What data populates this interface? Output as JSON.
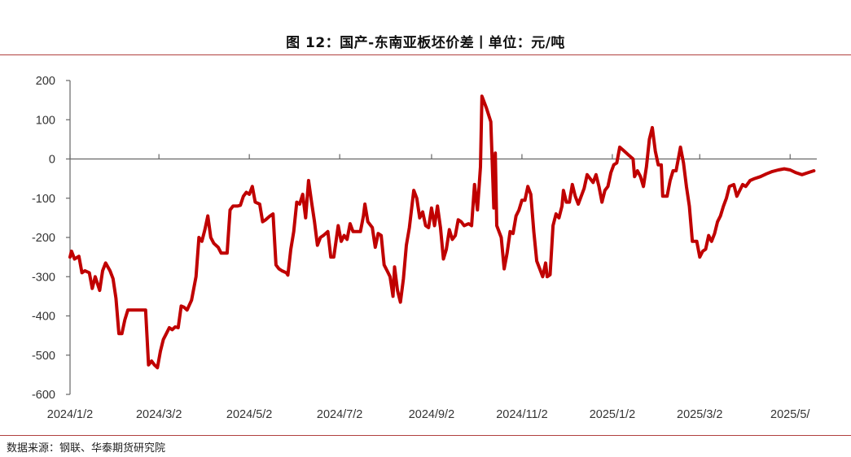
{
  "title": "图 12：国产-东南亚板坯价差丨单位：元/吨",
  "source": "数据来源：钢联、华泰期货研究院",
  "chart_data": {
    "type": "line",
    "title": "图 12：国产-东南亚板坯价差丨单位：元/吨",
    "xlabel": "",
    "ylabel": "",
    "ylim": [
      -600,
      200
    ],
    "yticks": [
      200,
      100,
      0,
      -100,
      -200,
      -300,
      -400,
      -500,
      -600
    ],
    "ytick_labels": [
      "200",
      "100",
      "0",
      "-100",
      "-200",
      "-300",
      "-400",
      "-500",
      "-600"
    ],
    "xlim": [
      "2024-01-02",
      "2025-05-20"
    ],
    "xticks": [
      "2024-01-02",
      "2024-03-02",
      "2024-05-02",
      "2024-07-02",
      "2024-09-02",
      "2024-11-02",
      "2025-01-02",
      "2025-03-02",
      "2025-05-02"
    ],
    "xtick_labels": [
      "2024/1/2",
      "2024/3/2",
      "2024/5/2",
      "2024/7/2",
      "2024/9/2",
      "2024/11/2",
      "2025/1/2",
      "2025/3/2",
      "2025/5/"
    ],
    "grid": false,
    "legend": "none",
    "series_color": "#c00000",
    "series": [
      {
        "points": [
          [
            "2024-01-02",
            -250
          ],
          [
            "2024-01-03",
            -235
          ],
          [
            "2024-01-05",
            -255
          ],
          [
            "2024-01-08",
            -248
          ],
          [
            "2024-01-10",
            -290
          ],
          [
            "2024-01-12",
            -285
          ],
          [
            "2024-01-15",
            -290
          ],
          [
            "2024-01-17",
            -330
          ],
          [
            "2024-01-19",
            -300
          ],
          [
            "2024-01-22",
            -335
          ],
          [
            "2024-01-24",
            -285
          ],
          [
            "2024-01-26",
            -265
          ],
          [
            "2024-01-29",
            -285
          ],
          [
            "2024-01-31",
            -305
          ],
          [
            "2024-02-02",
            -355
          ],
          [
            "2024-02-04",
            -445
          ],
          [
            "2024-02-06",
            -445
          ],
          [
            "2024-02-08",
            -410
          ],
          [
            "2024-02-10",
            -385
          ],
          [
            "2024-02-13",
            -385
          ],
          [
            "2024-02-16",
            -385
          ],
          [
            "2024-02-19",
            -385
          ],
          [
            "2024-02-22",
            -385
          ],
          [
            "2024-02-24",
            -525
          ],
          [
            "2024-02-26",
            -515
          ],
          [
            "2024-02-28",
            -525
          ],
          [
            "2024-03-01",
            -532
          ],
          [
            "2024-03-03",
            -490
          ],
          [
            "2024-03-05",
            -460
          ],
          [
            "2024-03-07",
            -445
          ],
          [
            "2024-03-09",
            -430
          ],
          [
            "2024-03-11",
            -435
          ],
          [
            "2024-03-13",
            -428
          ],
          [
            "2024-03-15",
            -430
          ],
          [
            "2024-03-17",
            -375
          ],
          [
            "2024-03-19",
            -378
          ],
          [
            "2024-03-21",
            -385
          ],
          [
            "2024-03-24",
            -360
          ],
          [
            "2024-03-27",
            -300
          ],
          [
            "2024-03-29",
            -200
          ],
          [
            "2024-03-31",
            -210
          ],
          [
            "2024-04-02",
            -180
          ],
          [
            "2024-04-04",
            -145
          ],
          [
            "2024-04-06",
            -200
          ],
          [
            "2024-04-08",
            -215
          ],
          [
            "2024-04-11",
            -225
          ],
          [
            "2024-04-13",
            -240
          ],
          [
            "2024-04-15",
            -240
          ],
          [
            "2024-04-17",
            -240
          ],
          [
            "2024-04-19",
            -130
          ],
          [
            "2024-04-21",
            -120
          ],
          [
            "2024-04-24",
            -120
          ],
          [
            "2024-04-26",
            -118
          ],
          [
            "2024-04-28",
            -95
          ],
          [
            "2024-04-30",
            -85
          ],
          [
            "2024-05-02",
            -90
          ],
          [
            "2024-05-04",
            -70
          ],
          [
            "2024-05-06",
            -110
          ],
          [
            "2024-05-09",
            -115
          ],
          [
            "2024-05-11",
            -160
          ],
          [
            "2024-05-13",
            -155
          ],
          [
            "2024-05-16",
            -145
          ],
          [
            "2024-05-18",
            -140
          ],
          [
            "2024-05-20",
            -270
          ],
          [
            "2024-05-22",
            -280
          ],
          [
            "2024-05-24",
            -285
          ],
          [
            "2024-05-27",
            -290
          ],
          [
            "2024-05-28",
            -296
          ],
          [
            "2024-05-30",
            -230
          ],
          [
            "2024-06-01",
            -185
          ],
          [
            "2024-06-03",
            -110
          ],
          [
            "2024-06-05",
            -115
          ],
          [
            "2024-06-07",
            -90
          ],
          [
            "2024-06-09",
            -150
          ],
          [
            "2024-06-11",
            -55
          ],
          [
            "2024-06-13",
            -110
          ],
          [
            "2024-06-15",
            -160
          ],
          [
            "2024-06-17",
            -220
          ],
          [
            "2024-06-19",
            -200
          ],
          [
            "2024-06-21",
            -195
          ],
          [
            "2024-06-24",
            -185
          ],
          [
            "2024-06-26",
            -250
          ],
          [
            "2024-06-28",
            -250
          ],
          [
            "2024-07-01",
            -170
          ],
          [
            "2024-07-03",
            -210
          ],
          [
            "2024-07-05",
            -195
          ],
          [
            "2024-07-07",
            -205
          ],
          [
            "2024-07-09",
            -165
          ],
          [
            "2024-07-11",
            -185
          ],
          [
            "2024-07-13",
            -185
          ],
          [
            "2024-07-16",
            -185
          ],
          [
            "2024-07-18",
            -145
          ],
          [
            "2024-07-19",
            -115
          ],
          [
            "2024-07-21",
            -160
          ],
          [
            "2024-07-24",
            -175
          ],
          [
            "2024-07-26",
            -225
          ],
          [
            "2024-07-28",
            -190
          ],
          [
            "2024-07-30",
            -195
          ],
          [
            "2024-08-01",
            -270
          ],
          [
            "2024-08-03",
            -285
          ],
          [
            "2024-08-05",
            -300
          ],
          [
            "2024-08-07",
            -350
          ],
          [
            "2024-08-08",
            -275
          ],
          [
            "2024-08-10",
            -335
          ],
          [
            "2024-08-12",
            -365
          ],
          [
            "2024-08-14",
            -305
          ],
          [
            "2024-08-16",
            -220
          ],
          [
            "2024-08-18",
            -175
          ],
          [
            "2024-08-21",
            -80
          ],
          [
            "2024-08-23",
            -100
          ],
          [
            "2024-08-25",
            -150
          ],
          [
            "2024-08-27",
            -135
          ],
          [
            "2024-08-29",
            -170
          ],
          [
            "2024-08-31",
            -175
          ],
          [
            "2024-09-02",
            -125
          ],
          [
            "2024-09-04",
            -170
          ],
          [
            "2024-09-06",
            -120
          ],
          [
            "2024-09-08",
            -175
          ],
          [
            "2024-09-10",
            -255
          ],
          [
            "2024-09-12",
            -230
          ],
          [
            "2024-09-14",
            -180
          ],
          [
            "2024-09-16",
            -205
          ],
          [
            "2024-09-18",
            -195
          ],
          [
            "2024-09-20",
            -155
          ],
          [
            "2024-09-22",
            -160
          ],
          [
            "2024-09-24",
            -170
          ],
          [
            "2024-09-27",
            -165
          ],
          [
            "2024-09-29",
            -170
          ],
          [
            "2024-10-01",
            -65
          ],
          [
            "2024-10-03",
            -130
          ],
          [
            "2024-10-05",
            -20
          ],
          [
            "2024-10-06",
            160
          ],
          [
            "2024-10-09",
            130
          ],
          [
            "2024-10-12",
            95
          ],
          [
            "2024-10-14",
            -125
          ],
          [
            "2024-10-15",
            15
          ],
          [
            "2024-10-16",
            -170
          ],
          [
            "2024-10-19",
            -200
          ],
          [
            "2024-10-21",
            -280
          ],
          [
            "2024-10-23",
            -240
          ],
          [
            "2024-10-25",
            -185
          ],
          [
            "2024-10-27",
            -190
          ],
          [
            "2024-10-29",
            -145
          ],
          [
            "2024-10-31",
            -130
          ],
          [
            "2024-11-02",
            -105
          ],
          [
            "2024-11-04",
            -105
          ],
          [
            "2024-11-06",
            -70
          ],
          [
            "2024-11-08",
            -90
          ],
          [
            "2024-11-10",
            -185
          ],
          [
            "2024-11-12",
            -260
          ],
          [
            "2024-11-14",
            -280
          ],
          [
            "2024-11-16",
            -300
          ],
          [
            "2024-11-18",
            -265
          ],
          [
            "2024-11-19",
            -300
          ],
          [
            "2024-11-21",
            -295
          ],
          [
            "2024-11-23",
            -170
          ],
          [
            "2024-11-25",
            -140
          ],
          [
            "2024-11-27",
            -150
          ],
          [
            "2024-11-29",
            -120
          ],
          [
            "2024-11-30",
            -80
          ],
          [
            "2024-12-02",
            -110
          ],
          [
            "2024-12-04",
            -110
          ],
          [
            "2024-12-06",
            -65
          ],
          [
            "2024-12-08",
            -95
          ],
          [
            "2024-12-10",
            -115
          ],
          [
            "2024-12-12",
            -95
          ],
          [
            "2024-12-14",
            -75
          ],
          [
            "2024-12-16",
            -40
          ],
          [
            "2024-12-18",
            -50
          ],
          [
            "2024-12-20",
            -60
          ],
          [
            "2024-12-22",
            -40
          ],
          [
            "2024-12-24",
            -70
          ],
          [
            "2024-12-26",
            -110
          ],
          [
            "2024-12-28",
            -80
          ],
          [
            "2024-12-30",
            -70
          ],
          [
            "2025-01-01",
            -35
          ],
          [
            "2025-01-03",
            -15
          ],
          [
            "2025-01-05",
            -10
          ],
          [
            "2025-01-07",
            30
          ],
          [
            "2025-01-10",
            20
          ],
          [
            "2025-01-13",
            10
          ],
          [
            "2025-01-16",
            0
          ],
          [
            "2025-01-17",
            -45
          ],
          [
            "2025-01-19",
            -30
          ],
          [
            "2025-01-21",
            -45
          ],
          [
            "2025-01-23",
            -70
          ],
          [
            "2025-01-25",
            -20
          ],
          [
            "2025-01-27",
            50
          ],
          [
            "2025-01-29",
            80
          ],
          [
            "2025-01-31",
            20
          ],
          [
            "2025-02-02",
            -15
          ],
          [
            "2025-02-04",
            -15
          ],
          [
            "2025-02-05",
            -95
          ],
          [
            "2025-02-08",
            -95
          ],
          [
            "2025-02-10",
            -55
          ],
          [
            "2025-02-12",
            -30
          ],
          [
            "2025-02-14",
            -30
          ],
          [
            "2025-02-16",
            10
          ],
          [
            "2025-02-17",
            30
          ],
          [
            "2025-02-19",
            -10
          ],
          [
            "2025-02-21",
            -70
          ],
          [
            "2025-02-23",
            -120
          ],
          [
            "2025-02-25",
            -210
          ],
          [
            "2025-02-28",
            -210
          ],
          [
            "2025-03-02",
            -250
          ],
          [
            "2025-03-04",
            -235
          ],
          [
            "2025-03-06",
            -230
          ],
          [
            "2025-03-08",
            -195
          ],
          [
            "2025-03-10",
            -210
          ],
          [
            "2025-03-12",
            -190
          ],
          [
            "2025-03-14",
            -160
          ],
          [
            "2025-03-16",
            -145
          ],
          [
            "2025-03-18",
            -120
          ],
          [
            "2025-03-20",
            -100
          ],
          [
            "2025-03-22",
            -70
          ],
          [
            "2025-03-25",
            -65
          ],
          [
            "2025-03-27",
            -95
          ],
          [
            "2025-03-29",
            -80
          ],
          [
            "2025-03-31",
            -65
          ],
          [
            "2025-04-02",
            -70
          ],
          [
            "2025-04-05",
            -55
          ],
          [
            "2025-04-08",
            -50
          ],
          [
            "2025-04-12",
            -45
          ],
          [
            "2025-04-16",
            -38
          ],
          [
            "2025-04-20",
            -32
          ],
          [
            "2025-04-24",
            -28
          ],
          [
            "2025-04-28",
            -25
          ],
          [
            "2025-05-02",
            -28
          ],
          [
            "2025-05-06",
            -35
          ],
          [
            "2025-05-10",
            -40
          ],
          [
            "2025-05-14",
            -35
          ],
          [
            "2025-05-18",
            -30
          ]
        ]
      }
    ]
  }
}
